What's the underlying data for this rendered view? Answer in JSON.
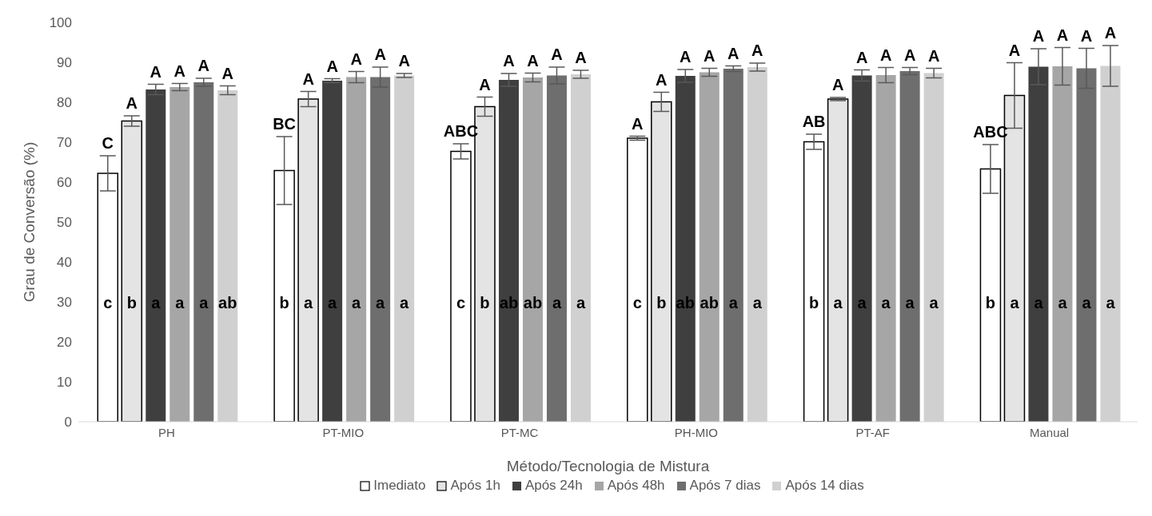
{
  "chart_data": {
    "type": "bar",
    "xlabel": "Método/Tecnologia de Mistura",
    "ylabel": "Grau de Conversão (%)",
    "categories": [
      "PH",
      "PT-MIO",
      "PT-MC",
      "PH-MIO",
      "PT-AF",
      "Manual"
    ],
    "series": [
      {
        "name": "Imediato",
        "color": "#ffffff",
        "values": [
          62.2,
          62.9,
          67.7,
          71.0,
          70.1,
          63.3
        ],
        "errors": [
          4.4,
          8.5,
          1.9,
          0.5,
          1.9,
          6.1
        ],
        "value_labels": [
          "C",
          "BC",
          "ABC",
          "A",
          "AB",
          "ABC"
        ]
      },
      {
        "name": "Após 1h",
        "color": "#e4e4e4",
        "values": [
          75.3,
          80.8,
          78.9,
          80.1,
          80.8,
          81.7
        ],
        "errors": [
          1.3,
          1.9,
          2.4,
          2.4,
          0.4,
          8.2
        ],
        "value_labels": [
          "A",
          "A",
          "A",
          "A",
          "A",
          "A"
        ]
      },
      {
        "name": "Após 24h",
        "color": "#3f3f3f",
        "values": [
          83.2,
          85.4,
          85.6,
          86.6,
          86.7,
          88.9
        ],
        "errors": [
          1.3,
          0.5,
          1.6,
          1.6,
          1.4,
          4.5
        ],
        "value_labels": [
          "A",
          "A",
          "A",
          "A",
          "A",
          "A"
        ]
      },
      {
        "name": "Após 48h",
        "color": "#a6a6a6",
        "values": [
          83.8,
          86.3,
          86.2,
          87.5,
          86.8,
          89.0
        ],
        "errors": [
          0.9,
          1.4,
          1.1,
          1.0,
          1.9,
          4.7
        ],
        "value_labels": [
          "A",
          "A",
          "A",
          "A",
          "A",
          "A"
        ]
      },
      {
        "name": "Após 7 dias",
        "color": "#6e6e6e",
        "values": [
          85.0,
          86.3,
          86.7,
          88.4,
          87.8,
          88.5
        ],
        "errors": [
          1.0,
          2.5,
          2.1,
          0.7,
          0.9,
          5.0
        ],
        "value_labels": [
          "A",
          "A",
          "A",
          "A",
          "A",
          "A"
        ]
      },
      {
        "name": "Após 14 dias",
        "color": "#d0d0d0",
        "values": [
          83.0,
          86.7,
          87.0,
          88.8,
          87.3,
          89.1
        ],
        "errors": [
          1.1,
          0.5,
          1.0,
          1.0,
          1.2,
          5.1
        ],
        "value_labels": [
          "A",
          "A",
          "A",
          "A",
          "A",
          "A"
        ]
      }
    ],
    "ylim": [
      0,
      100
    ],
    "yticks": [
      0,
      10,
      20,
      30,
      40,
      50,
      60,
      70,
      80,
      90,
      100
    ],
    "legend": "bottom",
    "annotations": [
      "c",
      "b",
      "a",
      "a",
      "a",
      "ab",
      "b",
      "a",
      "a",
      "a",
      "a",
      "a",
      "c",
      "b",
      "ab",
      "ab",
      "a",
      "a",
      "c",
      "b",
      "ab",
      "ab",
      "a",
      "a",
      "b",
      "a",
      "a",
      "a",
      "a",
      "a",
      "b",
      "a",
      "a",
      "a",
      "a",
      "a"
    ]
  }
}
